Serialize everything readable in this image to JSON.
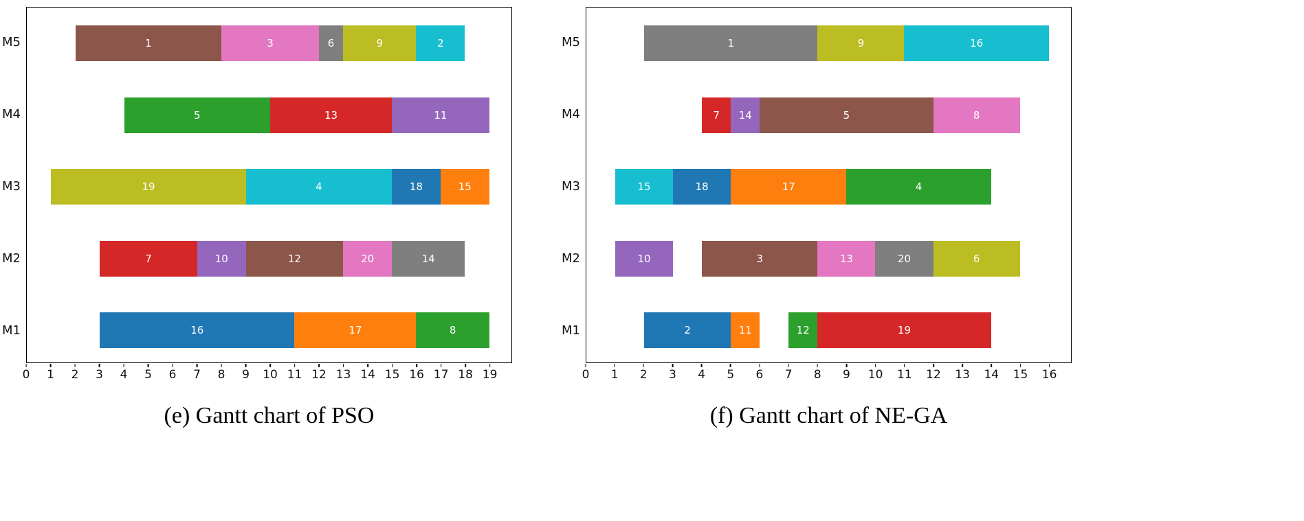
{
  "figure": {
    "background": "#ffffff",
    "text_color": "#111111"
  },
  "palette": {
    "blue": "#1f77b4",
    "orange": "#ff7f0e",
    "green": "#2ca02c",
    "red": "#d62728",
    "purple": "#9467bd",
    "brown": "#8c564b",
    "pink": "#e377c2",
    "gray": "#7f7f7f",
    "olive": "#bcbd22",
    "cyan": "#17becf"
  },
  "chart_data": [
    {
      "type": "bar",
      "subtype": "gantt",
      "caption": "(e) Gantt chart of PSO",
      "x_min": 0,
      "x_max": 19,
      "x_ticks": [
        0,
        1,
        2,
        3,
        4,
        5,
        6,
        7,
        8,
        9,
        10,
        11,
        12,
        13,
        14,
        15,
        16,
        17,
        18,
        19
      ],
      "y_categories": [
        "M1",
        "M2",
        "M3",
        "M4",
        "M5"
      ],
      "grid": false,
      "legend": "none",
      "bars": [
        {
          "machine": "M1",
          "job": "16",
          "start": 3,
          "end": 11,
          "color": "#1f77b4"
        },
        {
          "machine": "M1",
          "job": "17",
          "start": 11,
          "end": 16,
          "color": "#ff7f0e"
        },
        {
          "machine": "M1",
          "job": "8",
          "start": 16,
          "end": 19,
          "color": "#2ca02c"
        },
        {
          "machine": "M2",
          "job": "7",
          "start": 3,
          "end": 7,
          "color": "#d62728"
        },
        {
          "machine": "M2",
          "job": "10",
          "start": 7,
          "end": 9,
          "color": "#9467bd"
        },
        {
          "machine": "M2",
          "job": "12",
          "start": 9,
          "end": 13,
          "color": "#8c564b"
        },
        {
          "machine": "M2",
          "job": "20",
          "start": 13,
          "end": 15,
          "color": "#e377c2"
        },
        {
          "machine": "M2",
          "job": "14",
          "start": 15,
          "end": 18,
          "color": "#7f7f7f"
        },
        {
          "machine": "M3",
          "job": "19",
          "start": 1,
          "end": 9,
          "color": "#bcbd22"
        },
        {
          "machine": "M3",
          "job": "4",
          "start": 9,
          "end": 15,
          "color": "#17becf"
        },
        {
          "machine": "M3",
          "job": "18",
          "start": 15,
          "end": 17,
          "color": "#1f77b4"
        },
        {
          "machine": "M3",
          "job": "15",
          "start": 17,
          "end": 19,
          "color": "#ff7f0e"
        },
        {
          "machine": "M4",
          "job": "5",
          "start": 4,
          "end": 10,
          "color": "#2ca02c"
        },
        {
          "machine": "M4",
          "job": "13",
          "start": 10,
          "end": 15,
          "color": "#d62728"
        },
        {
          "machine": "M4",
          "job": "11",
          "start": 15,
          "end": 19,
          "color": "#9467bd"
        },
        {
          "machine": "M5",
          "job": "1",
          "start": 2,
          "end": 8,
          "color": "#8c564b"
        },
        {
          "machine": "M5",
          "job": "3",
          "start": 8,
          "end": 12,
          "color": "#e377c2"
        },
        {
          "machine": "M5",
          "job": "6",
          "start": 12,
          "end": 13,
          "color": "#7f7f7f"
        },
        {
          "machine": "M5",
          "job": "9",
          "start": 13,
          "end": 16,
          "color": "#bcbd22"
        },
        {
          "machine": "M5",
          "job": "2",
          "start": 16,
          "end": 18,
          "color": "#17becf"
        }
      ]
    },
    {
      "type": "bar",
      "subtype": "gantt",
      "caption": "(f) Gantt chart of NE-GA",
      "x_min": 0,
      "x_max": 16,
      "x_ticks": [
        0,
        1,
        2,
        3,
        4,
        5,
        6,
        7,
        8,
        9,
        10,
        11,
        12,
        13,
        14,
        15,
        16
      ],
      "y_categories": [
        "M1",
        "M2",
        "M3",
        "M4",
        "M5"
      ],
      "grid": false,
      "legend": "none",
      "bars": [
        {
          "machine": "M1",
          "job": "2",
          "start": 2,
          "end": 5,
          "color": "#1f77b4"
        },
        {
          "machine": "M1",
          "job": "11",
          "start": 5,
          "end": 6,
          "color": "#ff7f0e"
        },
        {
          "machine": "M1",
          "job": "12",
          "start": 7,
          "end": 8,
          "color": "#2ca02c"
        },
        {
          "machine": "M1",
          "job": "19",
          "start": 8,
          "end": 14,
          "color": "#d62728"
        },
        {
          "machine": "M2",
          "job": "10",
          "start": 1,
          "end": 3,
          "color": "#9467bd"
        },
        {
          "machine": "M2",
          "job": "3",
          "start": 4,
          "end": 8,
          "color": "#8c564b"
        },
        {
          "machine": "M2",
          "job": "13",
          "start": 8,
          "end": 10,
          "color": "#e377c2"
        },
        {
          "machine": "M2",
          "job": "20",
          "start": 10,
          "end": 12,
          "color": "#7f7f7f"
        },
        {
          "machine": "M2",
          "job": "6",
          "start": 12,
          "end": 15,
          "color": "#bcbd22"
        },
        {
          "machine": "M3",
          "job": "15",
          "start": 1,
          "end": 3,
          "color": "#17becf"
        },
        {
          "machine": "M3",
          "job": "18",
          "start": 3,
          "end": 5,
          "color": "#1f77b4"
        },
        {
          "machine": "M3",
          "job": "17",
          "start": 5,
          "end": 9,
          "color": "#ff7f0e"
        },
        {
          "machine": "M3",
          "job": "4",
          "start": 9,
          "end": 14,
          "color": "#2ca02c"
        },
        {
          "machine": "M4",
          "job": "7",
          "start": 4,
          "end": 5,
          "color": "#d62728"
        },
        {
          "machine": "M4",
          "job": "14",
          "start": 5,
          "end": 6,
          "color": "#9467bd"
        },
        {
          "machine": "M4",
          "job": "5",
          "start": 6,
          "end": 12,
          "color": "#8c564b"
        },
        {
          "machine": "M4",
          "job": "8",
          "start": 12,
          "end": 15,
          "color": "#e377c2"
        },
        {
          "machine": "M5",
          "job": "1",
          "start": 2,
          "end": 8,
          "color": "#7f7f7f"
        },
        {
          "machine": "M5",
          "job": "9",
          "start": 8,
          "end": 11,
          "color": "#bcbd22"
        },
        {
          "machine": "M5",
          "job": "16",
          "start": 11,
          "end": 16,
          "color": "#17becf"
        }
      ]
    }
  ]
}
